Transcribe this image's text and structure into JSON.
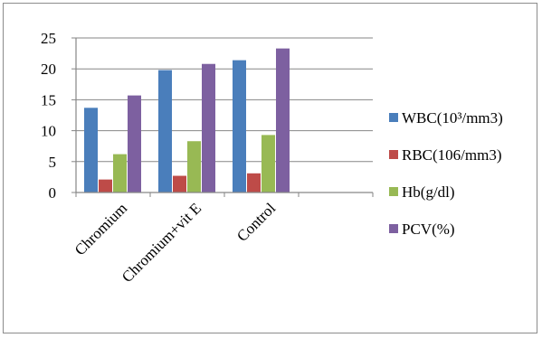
{
  "chart_data": {
    "type": "bar",
    "categories": [
      "Chromium",
      "Chromium+vit E",
      "Control",
      ""
    ],
    "series": [
      {
        "name": "WBC(10³/mm3)",
        "values": [
          13.7,
          19.8,
          21.4,
          null
        ],
        "color": "#4a7ebb"
      },
      {
        "name": "RBC(106/mm3)",
        "values": [
          2.1,
          2.7,
          3.1,
          null
        ],
        "color": "#be4b48"
      },
      {
        "name": "Hb(g/dl)",
        "values": [
          6.2,
          8.3,
          9.3,
          null
        ],
        "color": "#98b954"
      },
      {
        "name": "PCV(%)",
        "values": [
          15.7,
          20.8,
          23.3,
          null
        ],
        "color": "#7d60a0"
      }
    ],
    "title": "",
    "xlabel": "",
    "ylabel": "",
    "ylim": [
      0,
      25
    ],
    "yticks": [
      0,
      5,
      10,
      15,
      20,
      25
    ],
    "grid": true,
    "legend": "right"
  }
}
